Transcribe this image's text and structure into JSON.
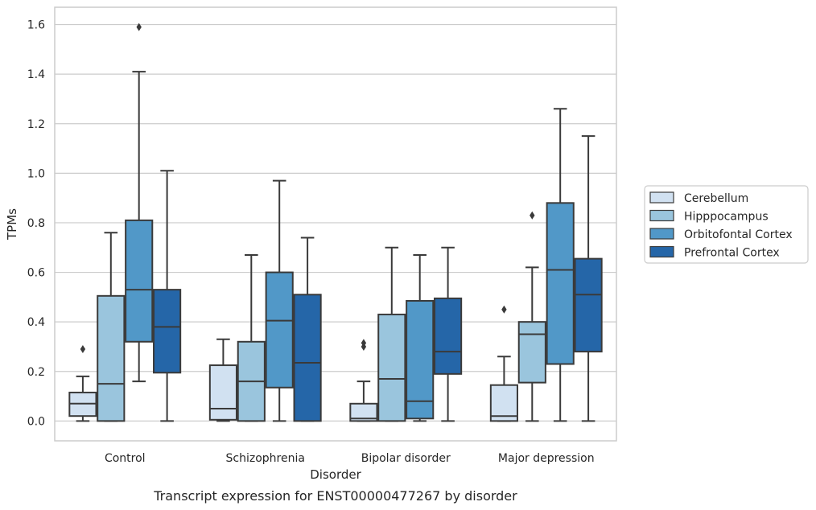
{
  "chart_data": {
    "type": "box",
    "caption": "Transcript expression for ENST00000477267 by disorder",
    "xlabel": "Disorder",
    "ylabel": "TPMs",
    "ylim": [
      -0.08,
      1.67
    ],
    "yticks": [
      0.0,
      0.2,
      0.4,
      0.6,
      0.8,
      1.0,
      1.2,
      1.4,
      1.6
    ],
    "ytick_labels": [
      "0.0",
      "0.2",
      "0.4",
      "0.6",
      "0.8",
      "1.0",
      "1.2",
      "1.4",
      "1.6"
    ],
    "grid": "horizontal",
    "legend_position": "right",
    "categories": [
      "Control",
      "Schizophrenia",
      "Bipolar disorder",
      "Major depression"
    ],
    "series": [
      {
        "name": "Cerebellum",
        "color": "#d1e1f1",
        "boxes": [
          {
            "min": 0.0,
            "q1": 0.02,
            "median": 0.07,
            "q3": 0.115,
            "max": 0.18,
            "outliers": [
              0.29
            ]
          },
          {
            "min": 0.0,
            "q1": 0.005,
            "median": 0.05,
            "q3": 0.225,
            "max": 0.33,
            "outliers": []
          },
          {
            "min": 0.0,
            "q1": 0.0,
            "median": 0.01,
            "q3": 0.07,
            "max": 0.16,
            "outliers": [
              0.3,
              0.315
            ]
          },
          {
            "min": 0.0,
            "q1": 0.0,
            "median": 0.02,
            "q3": 0.145,
            "max": 0.26,
            "outliers": [
              0.45
            ]
          }
        ]
      },
      {
        "name": "Hipppocampus",
        "color": "#9ac5dd",
        "boxes": [
          {
            "min": 0.0,
            "q1": 0.0,
            "median": 0.15,
            "q3": 0.505,
            "max": 0.76,
            "outliers": []
          },
          {
            "min": 0.0,
            "q1": 0.0,
            "median": 0.16,
            "q3": 0.32,
            "max": 0.67,
            "outliers": []
          },
          {
            "min": 0.0,
            "q1": 0.0,
            "median": 0.17,
            "q3": 0.43,
            "max": 0.7,
            "outliers": []
          },
          {
            "min": 0.0,
            "q1": 0.155,
            "median": 0.35,
            "q3": 0.4,
            "max": 0.62,
            "outliers": [
              0.83
            ]
          }
        ]
      },
      {
        "name": "Orbitofontal Cortex",
        "color": "#5198c8",
        "boxes": [
          {
            "min": 0.16,
            "q1": 0.32,
            "median": 0.53,
            "q3": 0.81,
            "max": 1.41,
            "outliers": [
              1.59
            ]
          },
          {
            "min": 0.0,
            "q1": 0.135,
            "median": 0.405,
            "q3": 0.6,
            "max": 0.97,
            "outliers": []
          },
          {
            "min": 0.0,
            "q1": 0.01,
            "median": 0.08,
            "q3": 0.485,
            "max": 0.67,
            "outliers": []
          },
          {
            "min": 0.0,
            "q1": 0.23,
            "median": 0.61,
            "q3": 0.88,
            "max": 1.26,
            "outliers": []
          }
        ]
      },
      {
        "name": "Prefrontal Cortex",
        "color": "#2566a8",
        "boxes": [
          {
            "min": 0.0,
            "q1": 0.195,
            "median": 0.38,
            "q3": 0.53,
            "max": 1.01,
            "outliers": []
          },
          {
            "min": 0.0,
            "q1": 0.0,
            "median": 0.235,
            "q3": 0.51,
            "max": 0.74,
            "outliers": []
          },
          {
            "min": 0.0,
            "q1": 0.19,
            "median": 0.28,
            "q3": 0.495,
            "max": 0.7,
            "outliers": []
          },
          {
            "min": 0.0,
            "q1": 0.28,
            "median": 0.51,
            "q3": 0.655,
            "max": 1.15,
            "outliers": []
          }
        ]
      }
    ]
  }
}
